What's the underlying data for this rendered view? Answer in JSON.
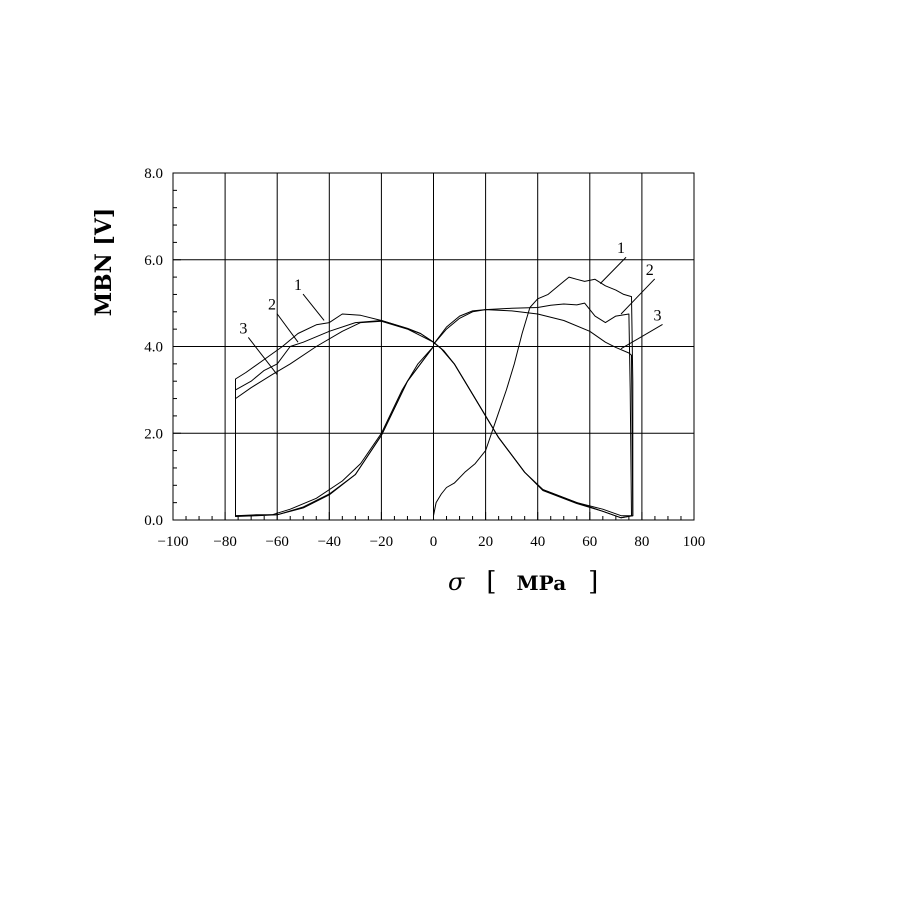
{
  "chart_data": {
    "type": "line",
    "title": "",
    "xlabel": {
      "symbol": "σ",
      "open": "[",
      "unit": "MPa",
      "close": "]"
    },
    "ylabel": "MBN [V]",
    "xlim": [
      -100,
      100
    ],
    "ylim": [
      0,
      8
    ],
    "x_ticks": [
      -100,
      -80,
      -60,
      -40,
      -20,
      0,
      20,
      40,
      60,
      80,
      100
    ],
    "x_tick_labels": [
      "−100",
      "−80",
      "−60",
      "−40",
      "−20",
      "0",
      "20",
      "40",
      "60",
      "80",
      "100"
    ],
    "y_ticks": [
      0,
      2,
      4,
      6,
      8
    ],
    "y_tick_labels": [
      "0.0",
      "2.0",
      "4.0",
      "6.0",
      "8.0"
    ],
    "grid": true,
    "curve_labels": [
      "1",
      "2",
      "3"
    ],
    "series": [
      {
        "id": "1",
        "values": [
          [
            0,
            0.1
          ],
          [
            1,
            0.4
          ],
          [
            3,
            0.6
          ],
          [
            5,
            0.75
          ],
          [
            8,
            0.85
          ],
          [
            12,
            1.1
          ],
          [
            16,
            1.3
          ],
          [
            20,
            1.6
          ],
          [
            24,
            2.3
          ],
          [
            28,
            3.0
          ],
          [
            31,
            3.6
          ],
          [
            34,
            4.3
          ],
          [
            37,
            4.9
          ],
          [
            40,
            5.1
          ],
          [
            44,
            5.2
          ],
          [
            48,
            5.4
          ],
          [
            50,
            5.5
          ],
          [
            52,
            5.6
          ],
          [
            55,
            5.55
          ],
          [
            58,
            5.5
          ],
          [
            62,
            5.55
          ],
          [
            66,
            5.4
          ],
          [
            70,
            5.3
          ],
          [
            73,
            5.2
          ],
          [
            76,
            5.15
          ],
          [
            76.5,
            3.2
          ],
          [
            76.5,
            0.1
          ],
          [
            72,
            0.1
          ],
          [
            65,
            0.25
          ],
          [
            55,
            0.4
          ],
          [
            42,
            0.7
          ],
          [
            35,
            1.1
          ],
          [
            25,
            1.9
          ],
          [
            15,
            2.9
          ],
          [
            8,
            3.6
          ],
          [
            4,
            3.9
          ],
          [
            0,
            4.1
          ],
          [
            -5,
            4.3
          ],
          [
            -12,
            4.45
          ],
          [
            -20,
            4.6
          ],
          [
            -28,
            4.72
          ],
          [
            -35,
            4.75
          ],
          [
            -40,
            4.55
          ],
          [
            -45,
            4.5
          ],
          [
            -52,
            4.3
          ],
          [
            -58,
            4.0
          ],
          [
            -65,
            3.7
          ],
          [
            -72,
            3.4
          ],
          [
            -76,
            3.25
          ],
          [
            -76,
            0.1
          ],
          [
            -70,
            0.1
          ],
          [
            -62,
            0.12
          ],
          [
            -55,
            0.25
          ],
          [
            -45,
            0.5
          ],
          [
            -35,
            0.9
          ],
          [
            -28,
            1.3
          ],
          [
            -20,
            2.0
          ],
          [
            -12,
            3.0
          ],
          [
            -6,
            3.6
          ],
          [
            0,
            4.0
          ]
        ]
      },
      {
        "id": "2",
        "values": [
          [
            0,
            4.05
          ],
          [
            5,
            4.4
          ],
          [
            10,
            4.65
          ],
          [
            15,
            4.8
          ],
          [
            20,
            4.85
          ],
          [
            30,
            4.88
          ],
          [
            40,
            4.9
          ],
          [
            45,
            4.95
          ],
          [
            50,
            4.98
          ],
          [
            55,
            4.96
          ],
          [
            58,
            5.0
          ],
          [
            62,
            4.7
          ],
          [
            66,
            4.55
          ],
          [
            70,
            4.7
          ],
          [
            75,
            4.75
          ],
          [
            75.5,
            3.0
          ],
          [
            76,
            0.1
          ],
          [
            72,
            0.05
          ],
          [
            65,
            0.2
          ],
          [
            55,
            0.38
          ],
          [
            42,
            0.68
          ],
          [
            35,
            1.1
          ],
          [
            25,
            1.9
          ],
          [
            15,
            2.9
          ],
          [
            8,
            3.6
          ],
          [
            3,
            3.95
          ],
          [
            0,
            4.1
          ],
          [
            -5,
            4.3
          ],
          [
            -10,
            4.42
          ],
          [
            -20,
            4.6
          ],
          [
            -30,
            4.55
          ],
          [
            -40,
            4.35
          ],
          [
            -50,
            4.1
          ],
          [
            -55,
            4.0
          ],
          [
            -60,
            3.6
          ],
          [
            -65,
            3.45
          ],
          [
            -70,
            3.2
          ],
          [
            -76,
            3.0
          ],
          [
            -76,
            0.08
          ],
          [
            -68,
            0.1
          ],
          [
            -60,
            0.12
          ],
          [
            -50,
            0.3
          ],
          [
            -40,
            0.6
          ],
          [
            -30,
            1.05
          ],
          [
            -20,
            1.95
          ],
          [
            -10,
            3.2
          ],
          [
            0,
            4.0
          ]
        ]
      },
      {
        "id": "3",
        "values": [
          [
            0,
            4.05
          ],
          [
            5,
            4.45
          ],
          [
            10,
            4.7
          ],
          [
            15,
            4.82
          ],
          [
            20,
            4.85
          ],
          [
            30,
            4.82
          ],
          [
            40,
            4.75
          ],
          [
            50,
            4.6
          ],
          [
            60,
            4.35
          ],
          [
            66,
            4.1
          ],
          [
            70,
            3.98
          ],
          [
            75,
            3.85
          ],
          [
            76,
            3.8
          ],
          [
            76.5,
            0.1
          ],
          [
            72,
            0.05
          ],
          [
            65,
            0.2
          ],
          [
            55,
            0.4
          ],
          [
            42,
            0.7
          ],
          [
            35,
            1.1
          ],
          [
            25,
            1.9
          ],
          [
            15,
            2.9
          ],
          [
            8,
            3.6
          ],
          [
            3,
            3.95
          ],
          [
            0,
            4.1
          ],
          [
            -10,
            4.4
          ],
          [
            -20,
            4.58
          ],
          [
            -28,
            4.55
          ],
          [
            -35,
            4.35
          ],
          [
            -45,
            4.0
          ],
          [
            -55,
            3.6
          ],
          [
            -62,
            3.35
          ],
          [
            -70,
            3.05
          ],
          [
            -76,
            2.8
          ],
          [
            -76,
            0.1
          ],
          [
            -68,
            0.12
          ],
          [
            -60,
            0.12
          ],
          [
            -50,
            0.28
          ],
          [
            -40,
            0.58
          ],
          [
            -30,
            1.05
          ],
          [
            -20,
            1.95
          ],
          [
            -10,
            3.2
          ],
          [
            0,
            4.0
          ]
        ]
      }
    ],
    "curve_label_positions": [
      {
        "label": "1",
        "x": -52,
        "y": 5.3,
        "x_target": -42,
        "y_target": 4.6
      },
      {
        "label": "2",
        "x": -62,
        "y": 4.85,
        "x_target": -52,
        "y_target": 4.1
      },
      {
        "label": "3",
        "x": -73,
        "y": 4.3,
        "x_target": -60,
        "y_target": 3.35
      },
      {
        "label": "1",
        "x": 72,
        "y": 6.15,
        "x_target": 64,
        "y_target": 5.45
      },
      {
        "label": "2",
        "x": 83,
        "y": 5.65,
        "x_target": 72,
        "y_target": 4.75
      },
      {
        "label": "3",
        "x": 86,
        "y": 4.6,
        "x_target": 72,
        "y_target": 3.95
      }
    ]
  }
}
